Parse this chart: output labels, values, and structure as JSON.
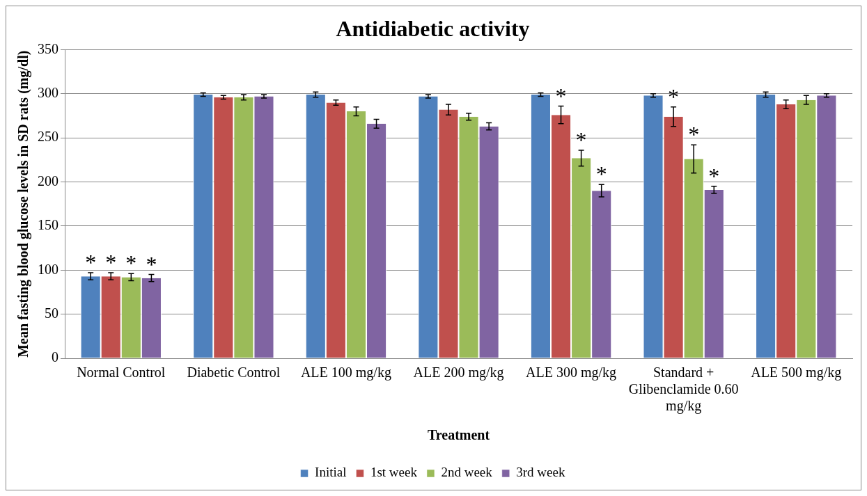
{
  "chart_data": {
    "type": "bar",
    "title": "Antidiabetic activity",
    "xlabel": "Treatment",
    "ylabel": "Mean fasting blood glucose levels in SD rats (mg/dl)",
    "categories": [
      "Normal Control",
      "Diabetic Control",
      "ALE 100 mg/kg",
      "ALE 200 mg/kg",
      "ALE 300 mg/kg",
      "Standard + Glibenclamide 0.60  mg/kg",
      "ALE 500 mg/kg"
    ],
    "series": [
      {
        "name": "Initial",
        "color": "#4f81bd",
        "values": [
          93,
          299,
          299,
          297,
          299,
          298,
          299
        ],
        "errors": [
          4,
          2,
          3,
          2,
          2,
          2,
          3
        ],
        "value_labels": [
          "*",
          null,
          null,
          null,
          null,
          null,
          null
        ]
      },
      {
        "name": "1st week",
        "color": "#c0504d",
        "values": [
          93,
          296,
          290,
          282,
          276,
          274,
          288
        ],
        "errors": [
          4,
          2,
          3,
          6,
          10,
          11,
          5
        ],
        "value_labels": [
          "*",
          null,
          null,
          null,
          "*",
          "*",
          null
        ]
      },
      {
        "name": "2nd week",
        "color": "#9bbb59",
        "values": [
          92,
          296,
          280,
          274,
          227,
          226,
          293
        ],
        "errors": [
          4,
          3,
          5,
          4,
          9,
          16,
          5
        ],
        "value_labels": [
          "*",
          null,
          null,
          null,
          "*",
          "*",
          null
        ]
      },
      {
        "name": "3rd week",
        "color": "#8064a2",
        "values": [
          91,
          297,
          266,
          263,
          190,
          191,
          298
        ],
        "errors": [
          4,
          2,
          5,
          4,
          7,
          4,
          2
        ],
        "value_labels": [
          "*",
          null,
          null,
          null,
          "*",
          "*",
          null
        ]
      }
    ],
    "ylim": [
      0,
      350
    ],
    "yticks": [
      0,
      50,
      100,
      150,
      200,
      250,
      300,
      350
    ],
    "grid": "y",
    "legend": "bottom"
  }
}
